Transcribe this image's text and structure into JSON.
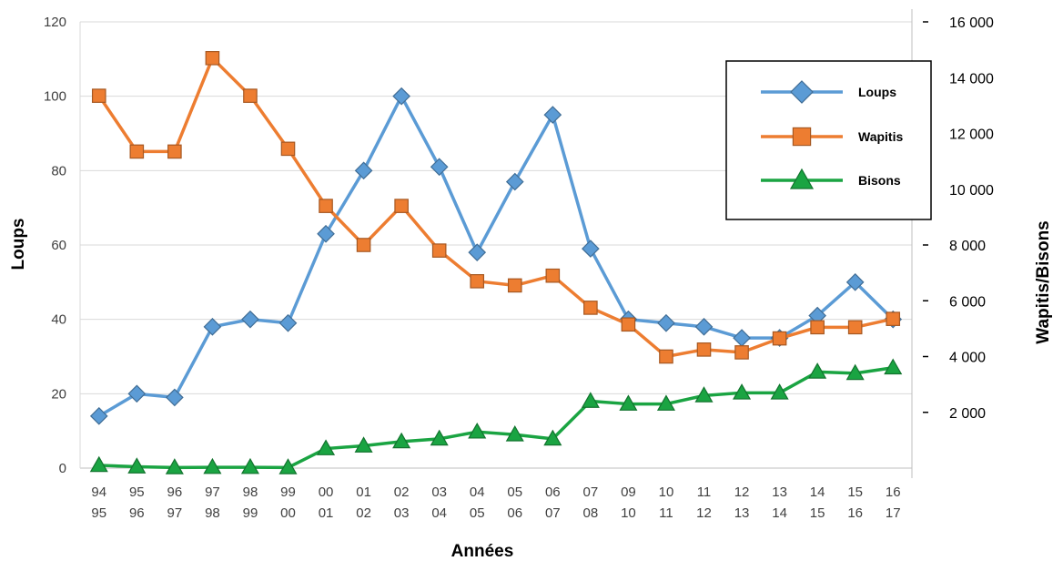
{
  "chart_data": {
    "type": "line",
    "categories": [
      [
        "94",
        "95"
      ],
      [
        "95",
        "96"
      ],
      [
        "96",
        "97"
      ],
      [
        "97",
        "98"
      ],
      [
        "98",
        "99"
      ],
      [
        "99",
        "00"
      ],
      [
        "00",
        "01"
      ],
      [
        "01",
        "02"
      ],
      [
        "02",
        "03"
      ],
      [
        "03",
        "04"
      ],
      [
        "04",
        "05"
      ],
      [
        "05",
        "06"
      ],
      [
        "06",
        "07"
      ],
      [
        "07",
        "08"
      ],
      [
        "09",
        "10"
      ],
      [
        "10",
        "11"
      ],
      [
        "11",
        "12"
      ],
      [
        "12",
        "13"
      ],
      [
        "13",
        "14"
      ],
      [
        "14",
        "15"
      ],
      [
        "15",
        "16"
      ],
      [
        "16",
        "17"
      ]
    ],
    "xlabel": "Années",
    "ylabel_left": "Loups",
    "ylabel_right": "Wapitis/Bisons",
    "ylim_left": [
      0,
      120
    ],
    "yticks_left": [
      "0",
      "20",
      "40",
      "60",
      "80",
      "100",
      "120"
    ],
    "ylim_right": [
      0,
      16000
    ],
    "yticks_right": [
      {
        "value": 2000,
        "label": "2 000"
      },
      {
        "value": 4000,
        "label": "4 000"
      },
      {
        "value": 6000,
        "label": "6 000"
      },
      {
        "value": 8000,
        "label": "8 000"
      },
      {
        "value": 10000,
        "label": "10 000"
      },
      {
        "value": 12000,
        "label": "12 000"
      },
      {
        "value": 14000,
        "label": "14 000"
      },
      {
        "value": 16000,
        "label": "16 000"
      }
    ],
    "grid": true,
    "legend_position": "top-right",
    "series": [
      {
        "name": "Loups",
        "axis": "left",
        "marker": "diamond",
        "color": "#5b9bd5",
        "values": [
          14,
          20,
          19,
          38,
          40,
          39,
          63,
          80,
          100,
          81,
          58,
          77,
          95,
          59,
          40,
          39,
          38,
          35,
          35,
          41,
          50,
          40
        ]
      },
      {
        "name": "Wapitis",
        "axis": "right",
        "marker": "square",
        "color": "#ed7d31",
        "values": [
          13350,
          11350,
          11350,
          14700,
          13350,
          11450,
          9400,
          8000,
          9400,
          7800,
          6700,
          6550,
          6900,
          5750,
          5150,
          4000,
          4250,
          4150,
          4650,
          5050,
          5050,
          5350
        ]
      },
      {
        "name": "Bisons",
        "axis": "right",
        "marker": "triangle",
        "color": "#1aa442",
        "values": [
          100,
          50,
          20,
          30,
          30,
          20,
          700,
          800,
          950,
          1050,
          1300,
          1200,
          1050,
          2400,
          2300,
          2300,
          2600,
          2700,
          2700,
          3450,
          3400,
          3600
        ]
      }
    ]
  }
}
